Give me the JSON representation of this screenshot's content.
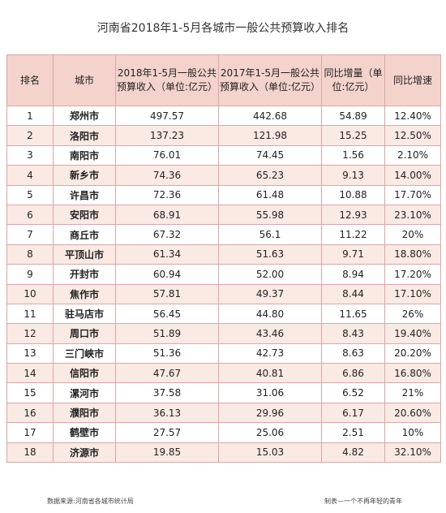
{
  "title": "河南省2018年1-5月各城市一般公共预算收入排名",
  "headers": [
    "排名",
    "城市",
    "2018年1-5月一般公共预算收入（单位:亿元）",
    "2017年1-5月一般公共预算收入（单位:亿元）",
    "同比增量（单位:亿元）",
    "同比增速"
  ],
  "rows": [
    [
      "1",
      "郑州市",
      "497.57",
      "442.68",
      "54.89",
      "12.40%"
    ],
    [
      "2",
      "洛阳市",
      "137.23",
      "121.98",
      "15.25",
      "12.50%"
    ],
    [
      "3",
      "南阳市",
      "76.01",
      "74.45",
      "1.56",
      "2.10%"
    ],
    [
      "4",
      "新乡市",
      "74.36",
      "65.23",
      "9.13",
      "14.00%"
    ],
    [
      "5",
      "许昌市",
      "72.36",
      "61.48",
      "10.88",
      "17.70%"
    ],
    [
      "6",
      "安阳市",
      "68.91",
      "55.98",
      "12.93",
      "23.10%"
    ],
    [
      "7",
      "商丘市",
      "67.32",
      "56.1",
      "11.22",
      "20%"
    ],
    [
      "8",
      "平顶山市",
      "61.34",
      "51.63",
      "9.71",
      "18.80%"
    ],
    [
      "9",
      "开封市",
      "60.94",
      "52.00",
      "8.94",
      "17.20%"
    ],
    [
      "10",
      "焦作市",
      "57.81",
      "49.37",
      "8.44",
      "17.10%"
    ],
    [
      "11",
      "驻马店市",
      "56.45",
      "44.80",
      "11.65",
      "26%"
    ],
    [
      "12",
      "周口市",
      "51.89",
      "43.46",
      "8.43",
      "19.40%"
    ],
    [
      "13",
      "三门峡市",
      "51.36",
      "42.73",
      "8.63",
      "20.20%"
    ],
    [
      "14",
      "信阳市",
      "47.67",
      "40.81",
      "6.86",
      "16.80%"
    ],
    [
      "15",
      "漯河市",
      "37.58",
      "31.06",
      "6.52",
      "21%"
    ],
    [
      "16",
      "濮阳市",
      "36.13",
      "29.96",
      "6.17",
      "20.60%"
    ],
    [
      "17",
      "鹤壁市",
      "27.57",
      "25.06",
      "2.51",
      "10%"
    ],
    [
      "18",
      "济源市",
      "19.85",
      "15.03",
      "4.82",
      "32.10%"
    ]
  ],
  "footer": {
    "source": "数据来源:河南省各城市统计局",
    "author": "制表—一个不再年轻的青年"
  },
  "colors": {
    "header_bg": "#f4d3cc",
    "row_alt_bg": "#fbe9e4",
    "border": "#d9a7a7"
  }
}
